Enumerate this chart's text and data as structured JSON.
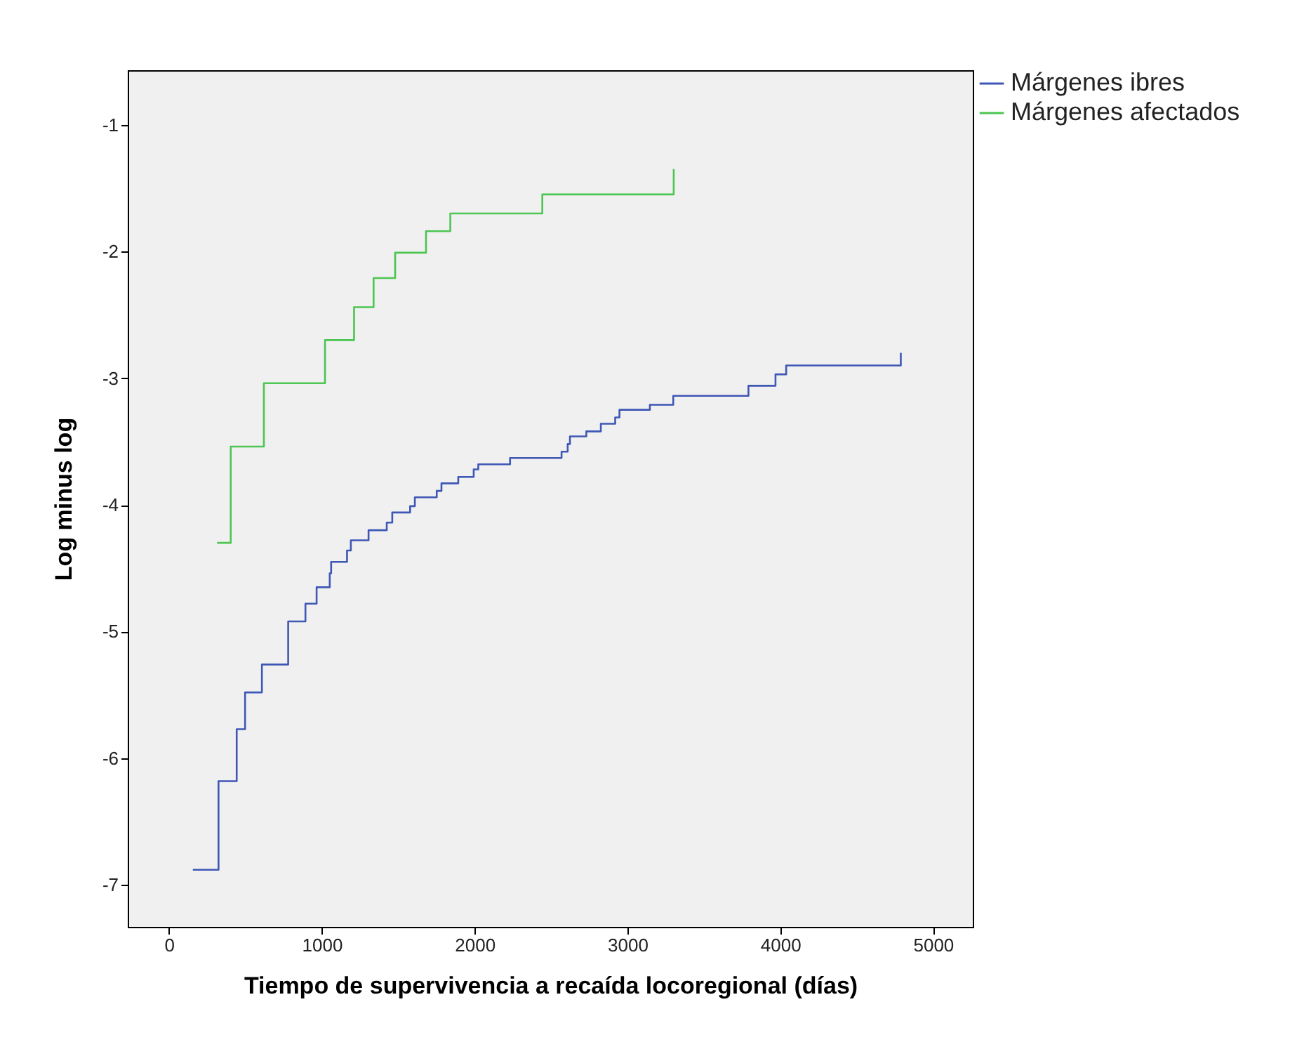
{
  "chart_data": {
    "type": "step",
    "xlabel": "Tiempo de supervivencia a recaída locoregional (días)",
    "ylabel": "Log minus log",
    "xlim": [
      -270,
      5260
    ],
    "xticks": [
      0,
      1000,
      2000,
      3000,
      4000,
      5000
    ],
    "ylim": [
      -7.33,
      -0.57
    ],
    "yticks": [
      -7,
      -6,
      -5,
      -4,
      -3,
      -2,
      -1
    ],
    "grid": false,
    "legend": "right",
    "marker": "none",
    "line_style": "solid",
    "series": [
      {
        "name": "Márgenes ibres",
        "color": "#3f57b5",
        "x": [
          156,
          324,
          443,
          498,
          608,
          780,
          893,
          966,
          1052,
          1061,
          1165,
          1190,
          1306,
          1425,
          1461,
          1578,
          1609,
          1752,
          1783,
          1893,
          1994,
          2024,
          2232,
          2569,
          2609,
          2624,
          2731,
          2826,
          2920,
          2948,
          3147,
          3300,
          3792,
          3969,
          4039,
          4789,
          4789
        ],
        "values": [
          -6.88,
          -6.18,
          -5.77,
          -5.48,
          -5.26,
          -4.92,
          -4.78,
          -4.65,
          -4.54,
          -4.45,
          -4.36,
          -4.28,
          -4.2,
          -4.14,
          -4.06,
          -4.01,
          -3.94,
          -3.89,
          -3.83,
          -3.78,
          -3.72,
          -3.68,
          -3.63,
          -3.58,
          -3.52,
          -3.46,
          -3.42,
          -3.36,
          -3.31,
          -3.25,
          -3.21,
          -3.14,
          -3.06,
          -2.97,
          -2.9,
          -2.9,
          -2.8
        ]
      },
      {
        "name": "Márgenes afectados",
        "color": "#4cc552",
        "x": [
          315,
          404,
          621,
          1021,
          1211,
          1339,
          1480,
          1682,
          1841,
          2443,
          3303,
          3303
        ],
        "values": [
          -4.3,
          -3.54,
          -3.04,
          -2.7,
          -2.44,
          -2.21,
          -2.01,
          -1.84,
          -1.7,
          -1.55,
          -1.55,
          -1.35
        ]
      }
    ]
  }
}
